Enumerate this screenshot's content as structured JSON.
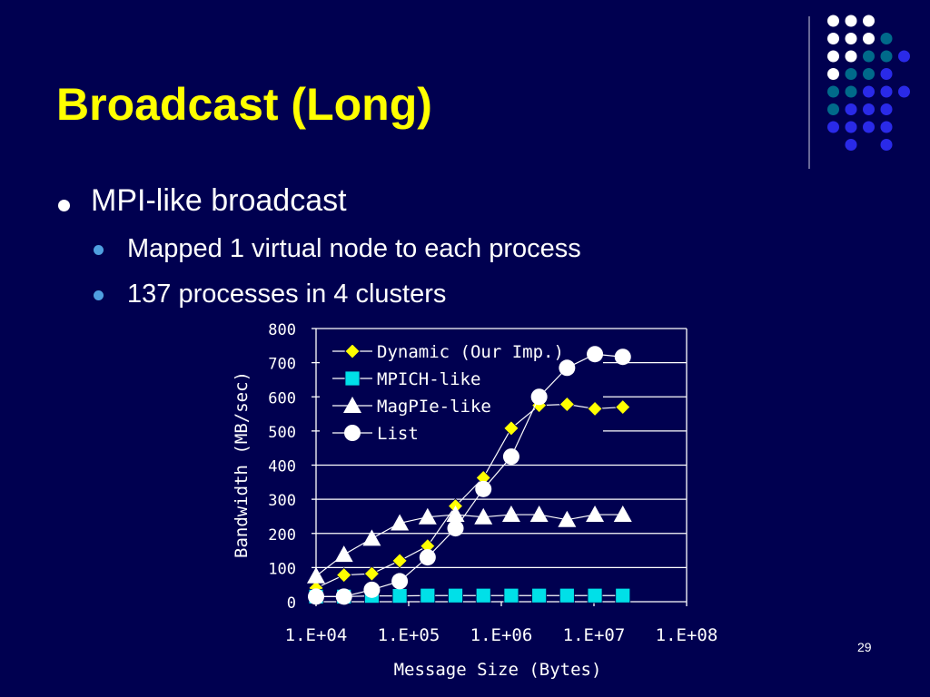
{
  "slide": {
    "title": "Broadcast (Long)",
    "bullets": [
      {
        "level": 1,
        "text": "MPI-like broadcast"
      },
      {
        "level": 2,
        "text": "Mapped 1 virtual node to each process"
      },
      {
        "level": 2,
        "text": "137 processes in 4 clusters"
      }
    ],
    "page_number": "29"
  },
  "colors": {
    "background": "#000050",
    "title": "#ffff00",
    "text": "#ffffff",
    "dynamic": "#ffff00",
    "mpich": "#00e0e8",
    "magpie": "#ffffff",
    "list": "#ffffff"
  },
  "chart_data": {
    "type": "line",
    "title": "",
    "xlabel": "Message Size (Bytes)",
    "ylabel": "Bandwidth (MB/sec)",
    "xscale": "log",
    "xlim": [
      10000,
      100000000
    ],
    "ylim": [
      0,
      800
    ],
    "x_tick_labels": [
      "1.E+04",
      "1.E+05",
      "1.E+06",
      "1.E+07",
      "1.E+08"
    ],
    "y_tick_labels": [
      "0",
      "100",
      "200",
      "300",
      "400",
      "500",
      "600",
      "700",
      "800"
    ],
    "grid": "horizontal",
    "legend_position": "top-left",
    "x": [
      10000,
      20000,
      40000,
      80000,
      160000,
      320000,
      640000,
      1280000,
      2560000,
      5120000,
      10240000,
      20480000,
      40960000,
      81920000
    ],
    "series": [
      {
        "name": "Dynamic (Our Imp.)",
        "marker": "diamond",
        "values": [
          40,
          78,
          82,
          120,
          163,
          280,
          363,
          508,
          575,
          578,
          565,
          570,
          null,
          null
        ]
      },
      {
        "name": "MPICH-like",
        "marker": "square",
        "values": [
          15,
          15,
          17,
          17,
          18,
          18,
          18,
          18,
          18,
          18,
          18,
          18,
          null,
          null
        ]
      },
      {
        "name": "MagPIe-like",
        "marker": "triangle",
        "values": [
          75,
          138,
          185,
          230,
          248,
          255,
          248,
          255,
          255,
          240,
          255,
          255,
          null,
          null
        ]
      },
      {
        "name": "List",
        "marker": "circle",
        "values": [
          15,
          15,
          35,
          60,
          130,
          215,
          330,
          425,
          600,
          685,
          725,
          717,
          null,
          null
        ]
      }
    ]
  }
}
